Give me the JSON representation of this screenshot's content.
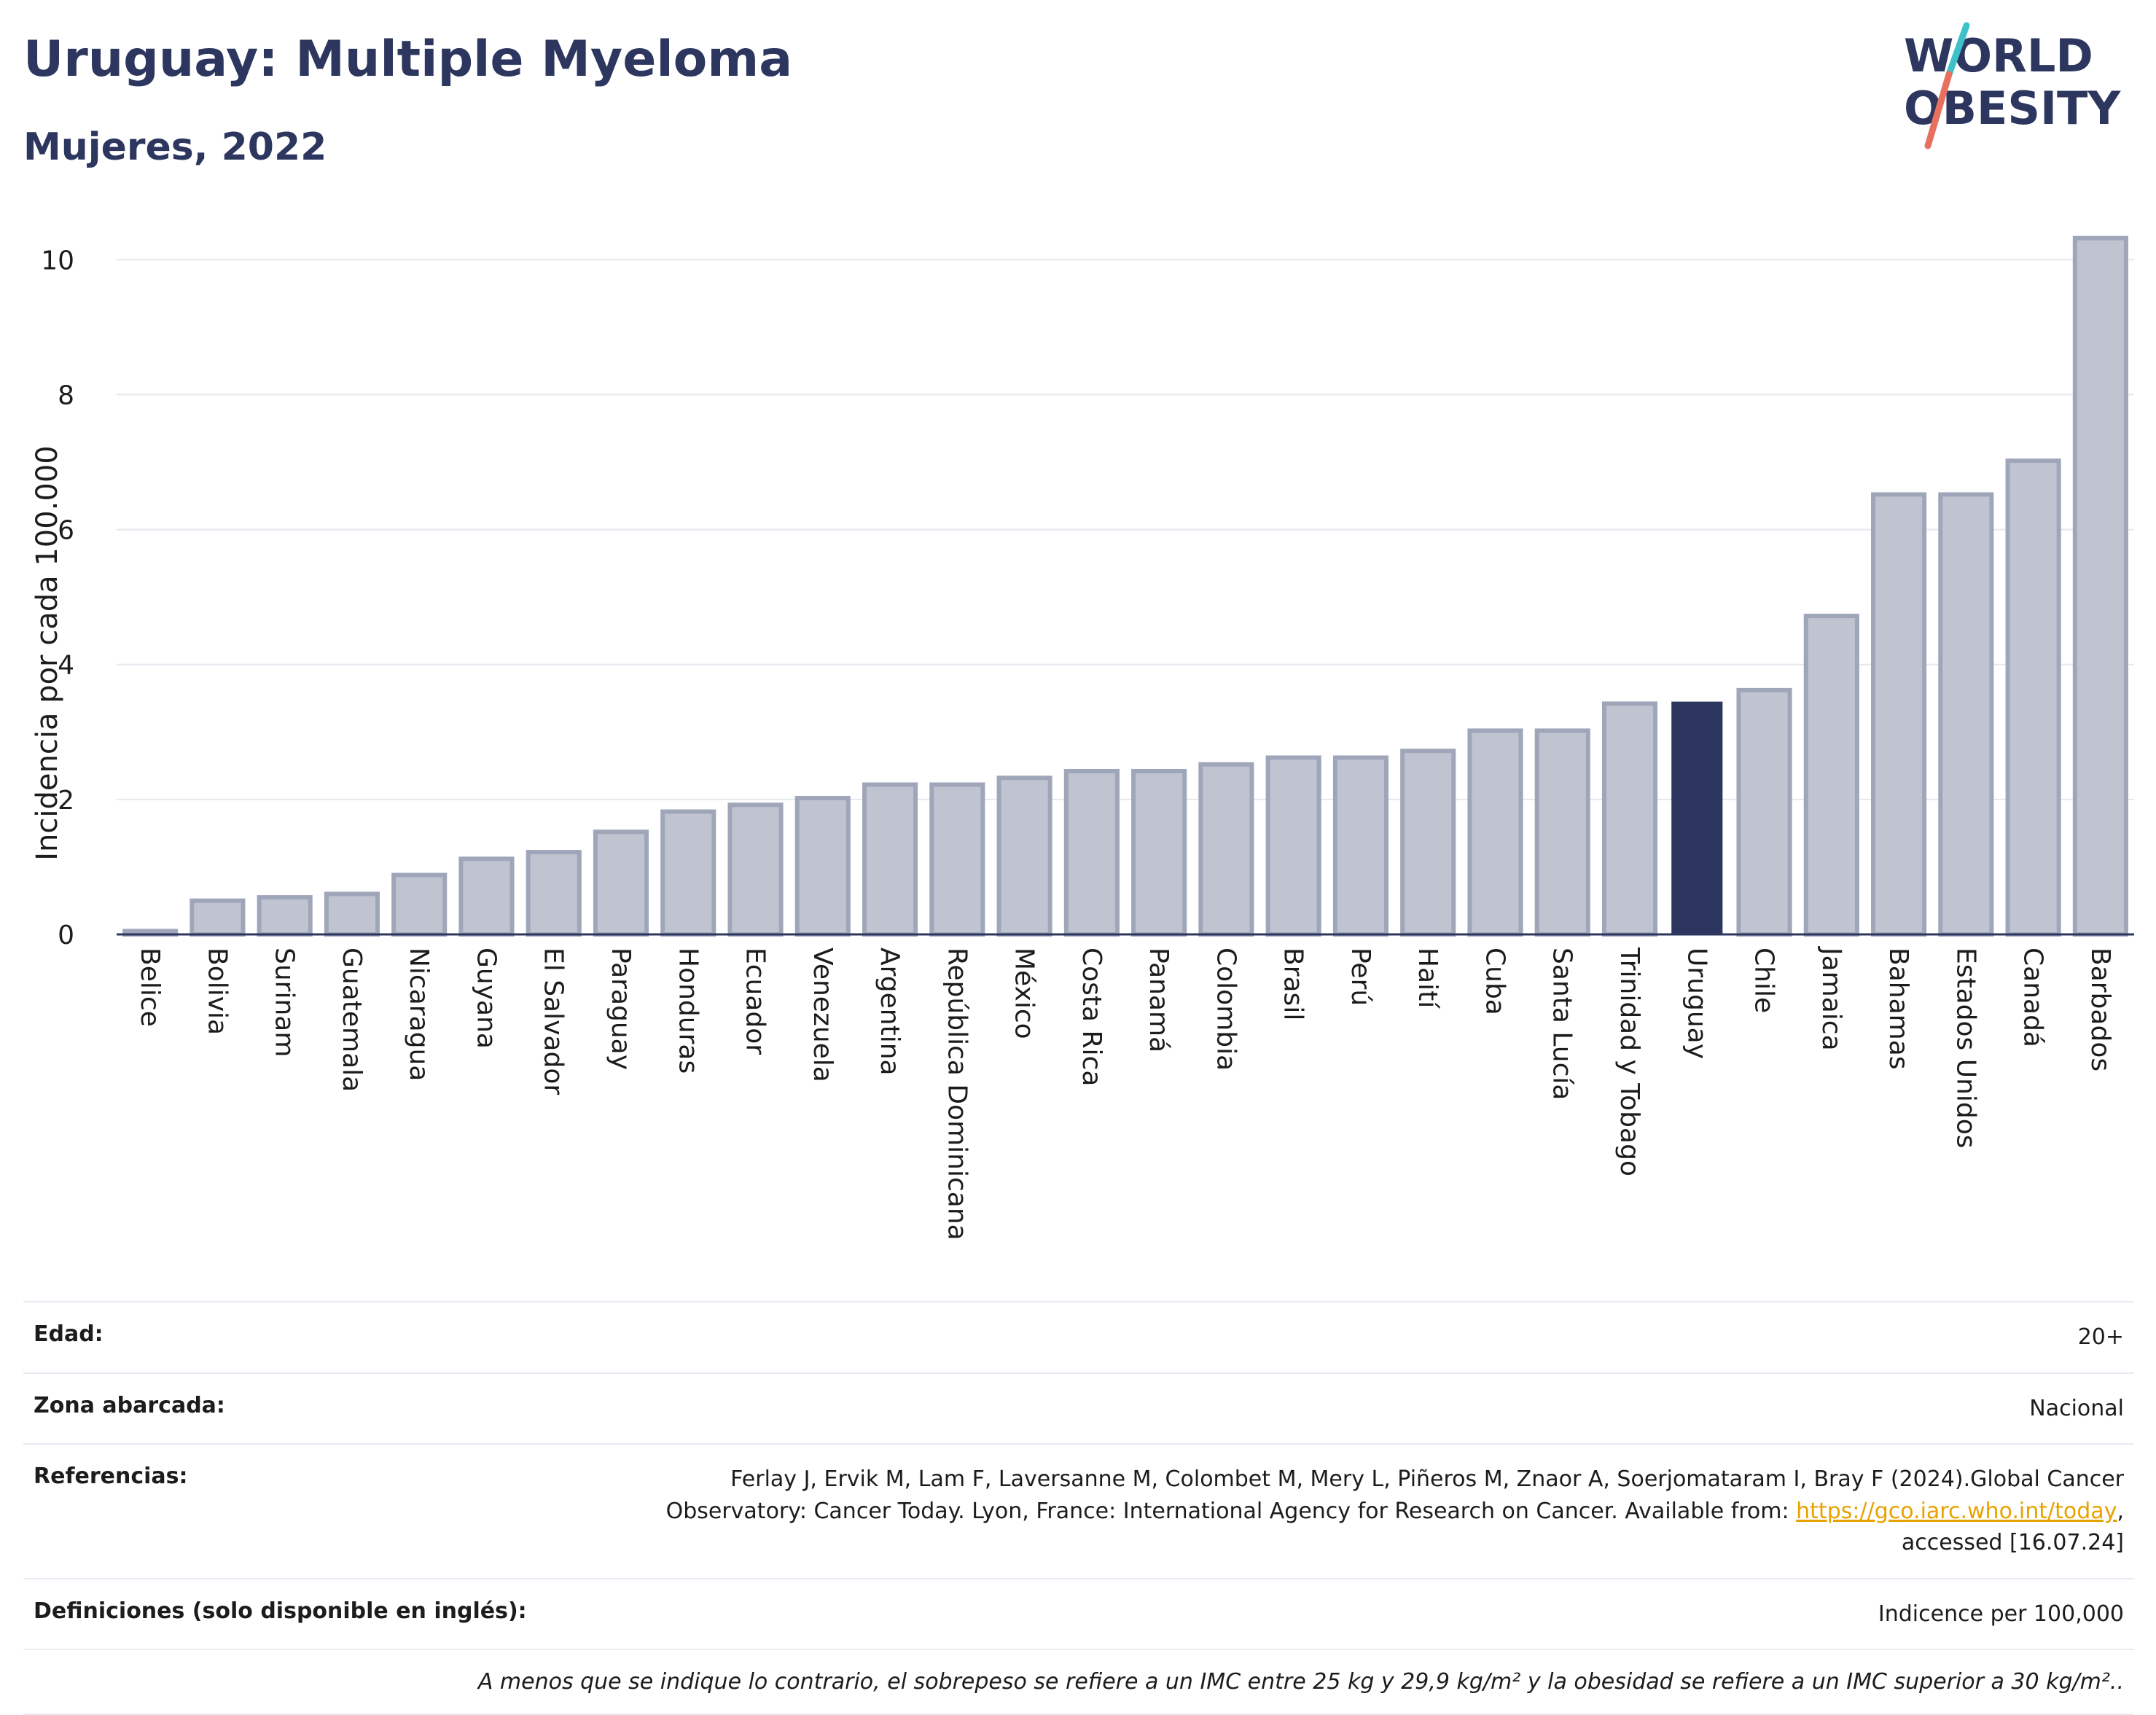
{
  "header": {
    "title": "Uruguay: Multiple Myeloma",
    "subtitle": "Mujeres, 2022"
  },
  "logo": {
    "line1": "WORLD",
    "line2": "OBESITY",
    "colors": {
      "text": "#2c365e",
      "slash_top": "#3fc1c9",
      "slash_bottom": "#e8705f"
    }
  },
  "chart_data": {
    "type": "bar",
    "title": "Uruguay: Multiple Myeloma",
    "ylabel": "Incidencia por cada 100.000",
    "xlabel": "",
    "ylim": [
      0,
      10.5
    ],
    "yticks": [
      0,
      2,
      4,
      6,
      8,
      10
    ],
    "grid": true,
    "highlight": "Uruguay",
    "colors": {
      "bar": "#c0c4d0",
      "bar_border": "#a0a6ba",
      "highlight": "#2c365e",
      "grid": "#e6e8ef",
      "axis": "#2c365e"
    },
    "categories": [
      "Belice",
      "Bolivia",
      "Surinam",
      "Guatemala",
      "Nicaragua",
      "Guyana",
      "El Salvador",
      "Paraguay",
      "Honduras",
      "Ecuador",
      "Venezuela",
      "Argentina",
      "República Dominicana",
      "México",
      "Costa Rica",
      "Panamá",
      "Colombia",
      "Brasil",
      "Perú",
      "Haití",
      "Cuba",
      "Santa Lucía",
      "Trinidad y Tobago",
      "Uruguay",
      "Chile",
      "Jamaica",
      "Bahamas",
      "Estados Unidos",
      "Canadá",
      "Barbados"
    ],
    "values": [
      0.05,
      0.5,
      0.55,
      0.6,
      0.88,
      1.12,
      1.22,
      1.52,
      1.82,
      1.92,
      2.02,
      2.22,
      2.22,
      2.32,
      2.42,
      2.42,
      2.52,
      2.62,
      2.62,
      2.72,
      3.02,
      3.02,
      3.42,
      3.45,
      3.62,
      4.72,
      6.52,
      6.52,
      7.02,
      10.32
    ]
  },
  "info": {
    "rows": [
      {
        "label": "Edad:",
        "value": "20+"
      },
      {
        "label": "Zona abarcada:",
        "value": "Nacional"
      },
      {
        "label": "Referencias:",
        "value_line1": "Ferlay J, Ervik M, Lam F, Laversanne M, Colombet M, Mery L, Piñeros M, Znaor A, Soerjomataram I, Bray F (2024).Global Cancer",
        "value_line2_prefix": "Observatory: Cancer Today. Lyon, France: International Agency for Research on Cancer. Available from: ",
        "link": "https://gco.iarc.who.int/today",
        "value_line2_suffix": ",",
        "value_line3": "accessed [16.07.24]"
      },
      {
        "label": "Definiciones (solo disponible en inglés):",
        "value": "Indicence per 100,000"
      }
    ],
    "note": "A menos que se indique lo contrario, el sobrepeso se refiere a un IMC entre 25 kg y 29,9 kg/m² y la obesidad se refiere a un IMC superior a 30 kg/m²..",
    "link_color": "#e8a200"
  }
}
